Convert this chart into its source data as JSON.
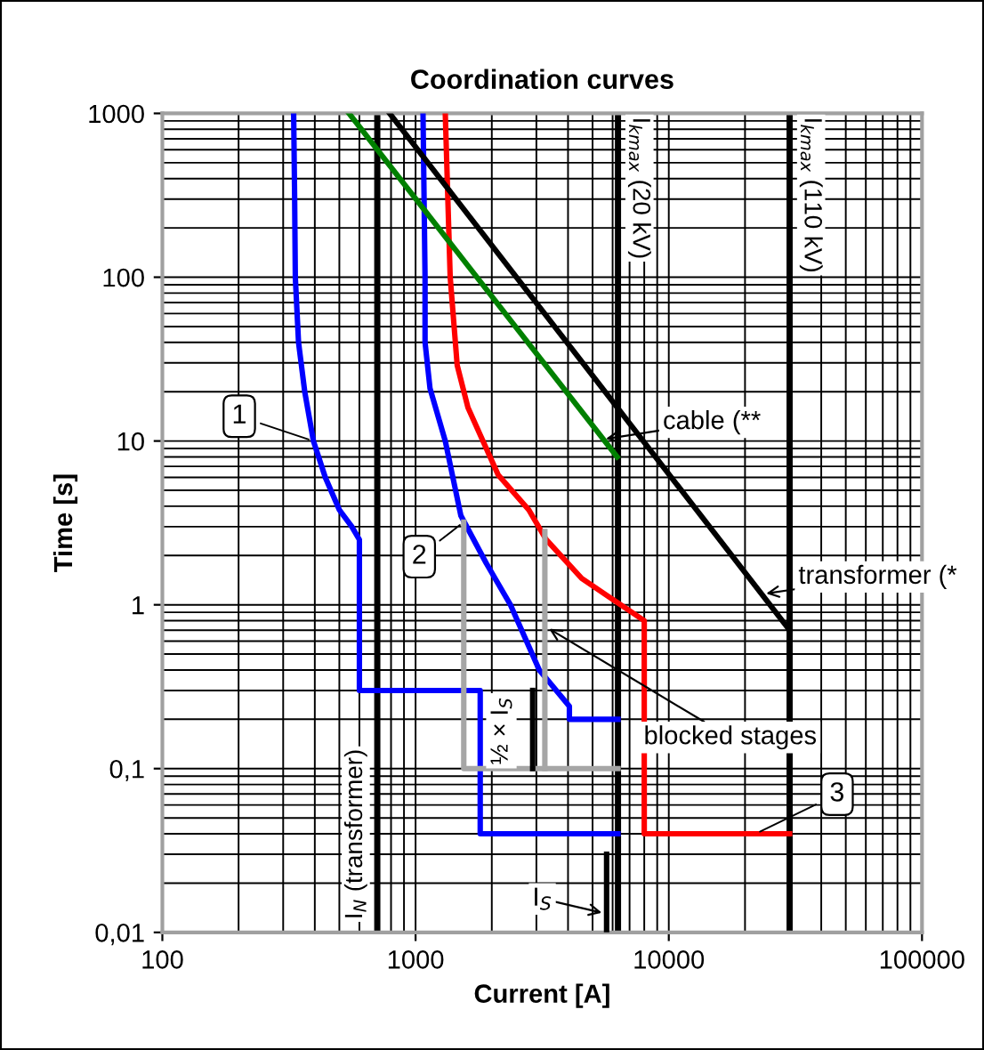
{
  "chart_data": {
    "type": "line",
    "title": "Coordination curves",
    "xlabel": "Current [A]",
    "ylabel": "Time [s]",
    "log": "xy",
    "grid": true,
    "marker": "none",
    "line_style": "solid",
    "xlim": [
      100,
      100000
    ],
    "ylim": [
      0.01,
      1000
    ],
    "xticks": [
      100,
      1000,
      10000,
      100000
    ],
    "yticks": [
      {
        "value": 0.01,
        "label": "0,01"
      },
      {
        "value": 0.1,
        "label": "0,1"
      },
      1,
      10,
      100,
      1000
    ],
    "series": [
      {
        "color": "#0000ff",
        "x": [
          330,
          333,
          335,
          345,
          365,
          395,
          440,
          500,
          560,
          600,
          600,
          1800,
          1800,
          6300
        ],
        "values": [
          1000,
          300,
          100,
          40,
          20,
          10,
          6,
          3.8,
          3,
          2.5,
          0.3,
          0.3,
          0.04,
          0.04
        ]
      },
      {
        "color": "#0000ff",
        "x": [
          1070,
          1090,
          1090,
          1140,
          1310,
          1510,
          1900,
          2370,
          3080,
          4050,
          4050,
          6300
        ],
        "values": [
          1000,
          100,
          40,
          21,
          10,
          3.5,
          1.8,
          1,
          0.4,
          0.24,
          0.2,
          0.2
        ]
      },
      {
        "color": "#ff0000",
        "x": [
          1310,
          1370,
          1460,
          1610,
          2120,
          2800,
          3280,
          4530,
          5750,
          8000,
          8000,
          30000
        ],
        "values": [
          1000,
          100,
          29,
          16,
          6.2,
          3.8,
          2.5,
          1.45,
          1.13,
          0.8,
          0.04,
          0.04
        ]
      },
      {
        "color": "#008000",
        "x": [
          546,
          6250
        ],
        "values": [
          1000,
          8
        ]
      },
      {
        "color": "#000000",
        "x": [
          790,
          30000
        ],
        "values": [
          1000,
          0.7
        ]
      },
      {
        "color": "#a6a6a6",
        "x": [
          1550,
          1550,
          6300
        ],
        "values": [
          3.2,
          0.1,
          0.1
        ]
      },
      {
        "color": "#a6a6a6",
        "x": [
          3240,
          3240
        ],
        "values": [
          2.8,
          0.1
        ]
      },
      {
        "color": "#000000",
        "x": [
          2900,
          2900
        ],
        "values": [
          0.3,
          0.1
        ]
      },
      {
        "color": "#000000",
        "x": [
          5680,
          5680
        ],
        "values": [
          0.03,
          0.01
        ]
      }
    ],
    "ref_lines": [
      {
        "axis": "x",
        "value": 706,
        "label": "I$_{N}$ (transformer)",
        "color": "#000000"
      },
      {
        "axis": "x",
        "value": 6300,
        "label": "I$_{kmax}$ (20 kV)",
        "color": "#000000"
      },
      {
        "axis": "x",
        "value": 30000,
        "label": "I$_{kmax}$ (110 kV)",
        "color": "#000000"
      }
    ],
    "annotations": [
      {
        "text": "1",
        "x": 395,
        "y": 10
      },
      {
        "text": "2",
        "x": 1550,
        "y": 3.2
      },
      {
        "text": "3",
        "x": 22000,
        "y": 0.04
      },
      {
        "text": "cable (**",
        "x": 5400,
        "y": 10.2
      },
      {
        "text": "transformer (*",
        "x": 23200,
        "y": 1.16
      },
      {
        "text": "blocked stages",
        "x": 3240,
        "y": 0.74
      },
      {
        "text": "½ × I$_{S}$",
        "x": 2900,
        "y": 0.17
      },
      {
        "text": "I$_{S}$",
        "x": 5680,
        "y": 0.013
      }
    ]
  }
}
